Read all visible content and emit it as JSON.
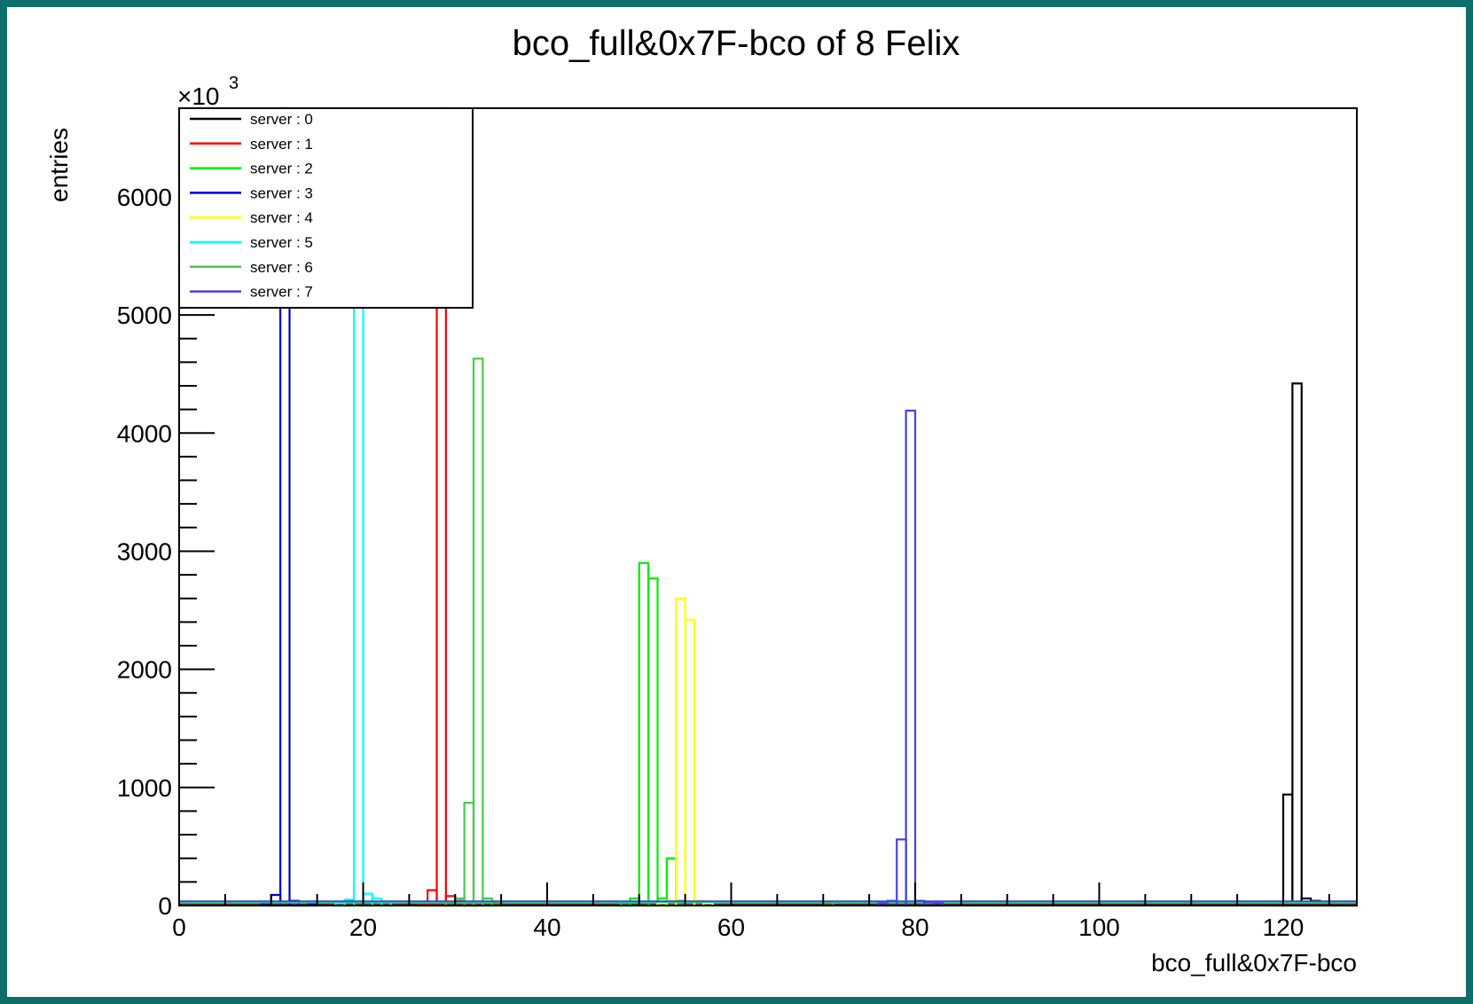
{
  "colors": {
    "frame": "#0e6e6a",
    "axis": "#000000"
  },
  "chart_data": {
    "type": "histogram",
    "title": "bco_full&0x7F-bco of 8 Felix",
    "xlabel": "bco_full&0x7F-bco",
    "ylabel": "entries",
    "y_multiplier": "×10",
    "y_multiplier_exp": "3",
    "xlim": [
      0,
      128
    ],
    "ylim": [
      0,
      6750
    ],
    "x_ticks": [
      0,
      20,
      40,
      60,
      80,
      100,
      120
    ],
    "y_ticks": [
      0,
      1000,
      2000,
      3000,
      4000,
      5000,
      6000
    ],
    "bin_width": 1,
    "legend_position": "top-left",
    "grid": false,
    "series": [
      {
        "name": "server : 0",
        "color": "#000000",
        "bins": [
          [
            119,
            20
          ],
          [
            120,
            940
          ],
          [
            121,
            4420
          ],
          [
            122,
            60
          ],
          [
            123,
            40
          ],
          [
            124,
            30
          ],
          [
            125,
            25
          ],
          [
            126,
            20
          ],
          [
            127,
            15
          ]
        ]
      },
      {
        "name": "server : 1",
        "color": "#ff0000",
        "bins": [
          [
            26,
            20
          ],
          [
            27,
            130
          ],
          [
            28,
            6750
          ],
          [
            29,
            80
          ],
          [
            30,
            40
          ],
          [
            31,
            30
          ],
          [
            32,
            20
          ]
        ]
      },
      {
        "name": "server : 2",
        "color": "#00ee00",
        "bins": [
          [
            48,
            20
          ],
          [
            49,
            60
          ],
          [
            50,
            2900
          ],
          [
            51,
            2770
          ],
          [
            52,
            60
          ],
          [
            53,
            400
          ],
          [
            54,
            40
          ]
        ]
      },
      {
        "name": "server : 3",
        "color": "#0000cc",
        "bins": [
          [
            9,
            20
          ],
          [
            10,
            90
          ],
          [
            11,
            6750
          ],
          [
            12,
            40
          ],
          [
            13,
            30
          ],
          [
            14,
            20
          ]
        ]
      },
      {
        "name": "server : 4",
        "color": "#ffff00",
        "bins": [
          [
            52,
            20
          ],
          [
            53,
            40
          ],
          [
            54,
            2600
          ],
          [
            55,
            2420
          ],
          [
            56,
            40
          ],
          [
            57,
            20
          ]
        ]
      },
      {
        "name": "server : 5",
        "color": "#00ffff",
        "bins": [
          [
            17,
            20
          ],
          [
            18,
            50
          ],
          [
            19,
            6750
          ],
          [
            20,
            100
          ],
          [
            21,
            60
          ],
          [
            22,
            30
          ]
        ]
      },
      {
        "name": "server : 6",
        "color": "#44cc44",
        "bins": [
          [
            29,
            30
          ],
          [
            30,
            60
          ],
          [
            31,
            870
          ],
          [
            32,
            4630
          ],
          [
            33,
            60
          ],
          [
            34,
            30
          ],
          [
            70,
            30
          ]
        ]
      },
      {
        "name": "server : 7",
        "color": "#4444dd",
        "bins": [
          [
            76,
            20
          ],
          [
            77,
            40
          ],
          [
            78,
            560
          ],
          [
            79,
            4190
          ],
          [
            80,
            40
          ],
          [
            81,
            30
          ],
          [
            82,
            20
          ]
        ]
      }
    ]
  }
}
